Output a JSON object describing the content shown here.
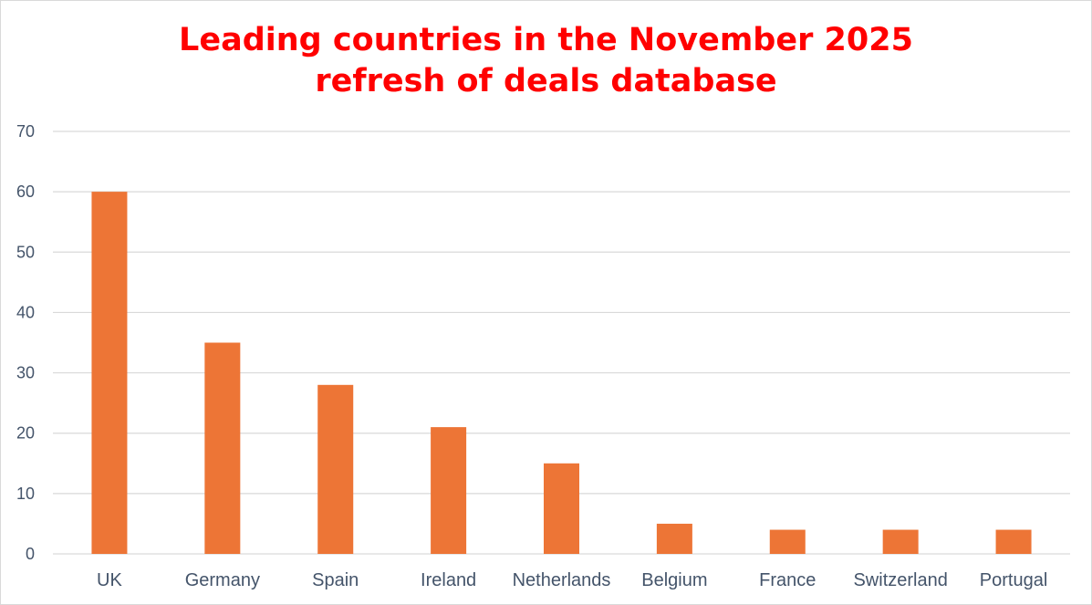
{
  "chart_data": {
    "type": "bar",
    "title_lines": [
      "Leading countries in the November 2025",
      "refresh of deals database"
    ],
    "categories": [
      "UK",
      "Germany",
      "Spain",
      "Ireland",
      "Netherlands",
      "Belgium",
      "France",
      "Switzerland",
      "Portugal"
    ],
    "values": [
      60,
      35,
      28,
      21,
      15,
      5,
      4,
      4,
      4
    ],
    "ylim": [
      0,
      70
    ],
    "yticks": [
      0,
      10,
      20,
      30,
      40,
      50,
      60,
      70
    ],
    "grid": true,
    "legend": "none",
    "bar_color": "#ed7536",
    "title_color": "#ff0000",
    "axis_text_color": "#44546a",
    "grid_color": "#d9d9d9"
  }
}
